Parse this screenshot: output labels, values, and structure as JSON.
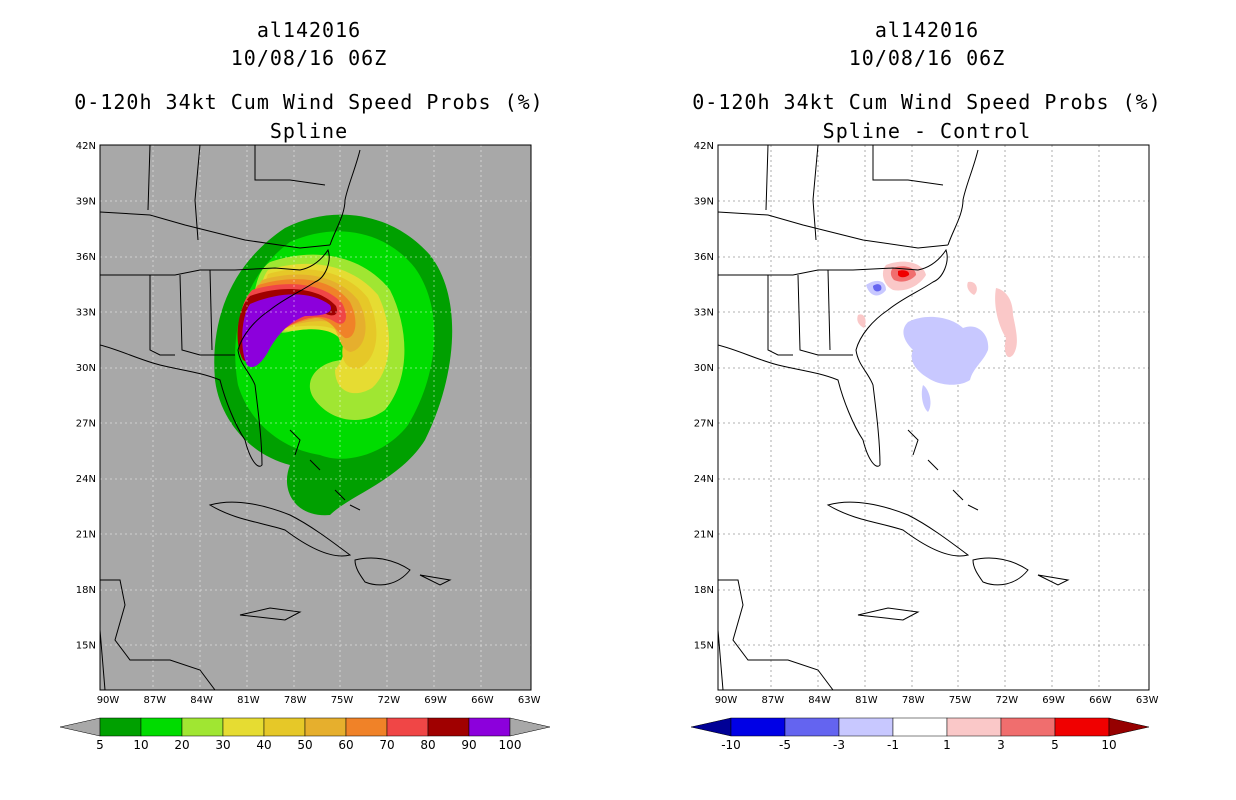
{
  "panels": [
    {
      "storm_id": "al142016",
      "datetime": "10/08/16 06Z",
      "product": "0-120h 34kt Cum Wind Speed Probs (%)",
      "subtitle": "Spline",
      "background": "#a8a8a8",
      "lat_labels": [
        "42N",
        "39N",
        "36N",
        "33N",
        "30N",
        "27N",
        "24N",
        "21N",
        "18N",
        "15N"
      ],
      "lon_labels": [
        "90W",
        "87W",
        "84W",
        "81W",
        "78W",
        "75W",
        "72W",
        "69W",
        "66W",
        "63W"
      ],
      "colorbar": {
        "labels": [
          "5",
          "10",
          "20",
          "30",
          "40",
          "50",
          "60",
          "70",
          "80",
          "90",
          "100"
        ],
        "colors": [
          "#00a000",
          "#00dc00",
          "#a0e632",
          "#e6dc32",
          "#e6c828",
          "#e6af2d",
          "#f08228",
          "#f04646",
          "#a00000",
          "#8c00dc"
        ],
        "under_color": "#a8a8a8",
        "over_color": "#a8a8a8"
      }
    },
    {
      "storm_id": "al142016",
      "datetime": "10/08/16 06Z",
      "product": "0-120h 34kt Cum Wind Speed Probs (%)",
      "subtitle": "Spline - Control",
      "background": "#ffffff",
      "lat_labels": [
        "42N",
        "39N",
        "36N",
        "33N",
        "30N",
        "27N",
        "24N",
        "21N",
        "18N",
        "15N"
      ],
      "lon_labels": [
        "90W",
        "87W",
        "84W",
        "81W",
        "78W",
        "75W",
        "72W",
        "69W",
        "66W",
        "63W"
      ],
      "colorbar": {
        "labels": [
          "-10",
          "-5",
          "-3",
          "-1",
          "1",
          "3",
          "5",
          "10"
        ],
        "colors": [
          "#0000e6",
          "#6464f0",
          "#c8c8ff",
          "#ffffff",
          "#fac8c8",
          "#f06e6e",
          "#f00000"
        ],
        "under_color": "#000096",
        "over_color": "#960000"
      }
    }
  ]
}
